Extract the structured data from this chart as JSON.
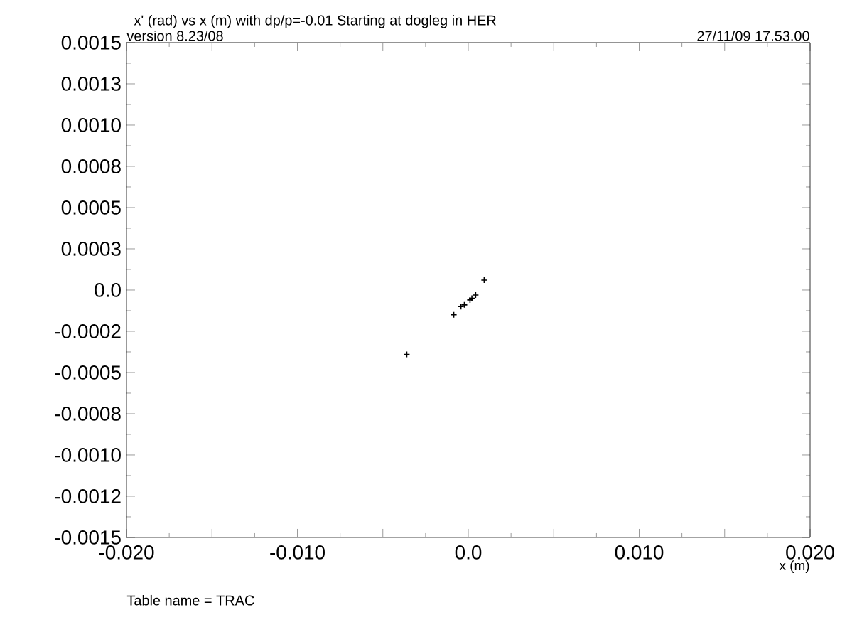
{
  "chart_data": {
    "type": "scatter",
    "title": "x' (rad) vs  x (m)   with dp/p=-0.01 Starting at dogleg in HER",
    "xlabel": "x (m)",
    "annotations": [
      "version 8.23/08",
      "27/11/09  17.53.00",
      "Table name = TRAC"
    ],
    "x": [
      0.00093,
      0.00043,
      0.00021,
      0.0001,
      -0.00023,
      -0.00043,
      -0.00085,
      -0.0036
    ],
    "series": [
      {
        "color": "#000000",
        "values": [
          6e-05,
          -3e-05,
          -5e-05,
          -6e-05,
          -9e-05,
          -0.0001,
          -0.00015,
          -0.00039
        ]
      }
    ],
    "marker": "cross",
    "xlim": [
      -0.02,
      0.02
    ],
    "ylim": [
      -0.0015,
      0.0015
    ],
    "xticks": [
      {
        "value": -0.02,
        "label": "-0.020"
      },
      {
        "value": -0.015,
        "label": null
      },
      {
        "value": -0.01,
        "label": "-0.010"
      },
      {
        "value": -0.005,
        "label": null
      },
      {
        "value": 0,
        "label": "0.0"
      },
      {
        "value": 0.005,
        "label": null
      },
      {
        "value": 0.01,
        "label": "0.010"
      },
      {
        "value": 0.015,
        "label": null
      },
      {
        "value": 0.02,
        "label": "0.020"
      }
    ],
    "yticks": [
      {
        "value": -0.0015,
        "label": "-0.0015"
      },
      {
        "value": -0.00125,
        "label": "-0.0012"
      },
      {
        "value": -0.001,
        "label": "-0.0010"
      },
      {
        "value": -0.00075,
        "label": "-0.0008"
      },
      {
        "value": -0.0005,
        "label": "-0.0005"
      },
      {
        "value": -0.00025,
        "label": "-0.0002"
      },
      {
        "value": 0,
        "label": "0.0"
      },
      {
        "value": 0.00025,
        "label": "0.0003"
      },
      {
        "value": 0.0005,
        "label": "0.0005"
      },
      {
        "value": 0.00075,
        "label": "0.0008"
      },
      {
        "value": 0.001,
        "label": "0.0010"
      },
      {
        "value": 0.00125,
        "label": "0.0013"
      },
      {
        "value": 0.0015,
        "label": "0.0015"
      }
    ],
    "grid": false
  }
}
